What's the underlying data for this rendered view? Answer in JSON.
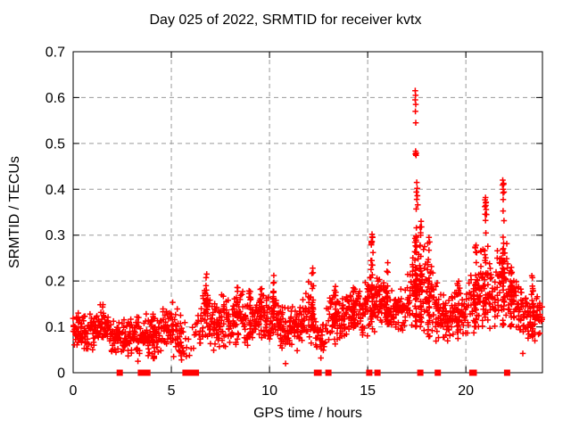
{
  "chart_data": {
    "type": "scatter",
    "title": "Day 025 of 2022, SRMTID for receiver kvtx",
    "xlabel": "GPS time / hours",
    "ylabel": "SRMTID / TECUs",
    "xlim": [
      0,
      23.9
    ],
    "ylim": [
      0,
      0.7
    ],
    "xticks": {
      "values": [
        0,
        5,
        10,
        15,
        20
      ],
      "labels": [
        "0",
        "5",
        "10",
        "15",
        "20"
      ]
    },
    "yticks": {
      "values": [
        0,
        0.1,
        0.2,
        0.3,
        0.4,
        0.5,
        0.6,
        0.7
      ],
      "labels": [
        "0",
        "0.1",
        "0.2",
        "0.3",
        "0.4",
        "0.5",
        "0.6",
        "0.7"
      ]
    },
    "grid": true,
    "legend": "none",
    "colors": {
      "marker": "#ff0000",
      "grid": "#9a9a9a",
      "frame": "#000000",
      "text": "#000000"
    },
    "marker": {
      "shape": "plus",
      "size": 7
    },
    "zero_marker": {
      "shape": "filled-square",
      "size": 7
    },
    "envelope": [
      [
        0.0,
        0.05,
        0.14,
        1
      ],
      [
        0.5,
        0.05,
        0.13,
        1
      ],
      [
        1.0,
        0.04,
        0.13,
        1
      ],
      [
        1.4,
        0.05,
        0.17,
        1
      ],
      [
        2.0,
        0.04,
        0.12,
        1
      ],
      [
        2.5,
        0.03,
        0.12,
        0.9
      ],
      [
        3.0,
        0.03,
        0.12,
        1
      ],
      [
        3.5,
        0.04,
        0.13,
        1
      ],
      [
        4.0,
        0.03,
        0.14,
        1
      ],
      [
        4.6,
        0.04,
        0.15,
        0.9
      ],
      [
        5.2,
        0.03,
        0.16,
        0.9
      ],
      [
        5.6,
        0.02,
        0.12,
        0.5
      ],
      [
        5.9,
        0.03,
        0.1,
        0.15
      ],
      [
        6.2,
        0.04,
        0.12,
        0.3
      ],
      [
        6.5,
        0.05,
        0.18,
        1
      ],
      [
        6.8,
        0.05,
        0.21,
        1
      ],
      [
        7.2,
        0.04,
        0.16,
        1
      ],
      [
        7.6,
        0.05,
        0.19,
        1
      ],
      [
        8.0,
        0.04,
        0.17,
        1
      ],
      [
        8.4,
        0.05,
        0.2,
        1
      ],
      [
        9.0,
        0.05,
        0.18,
        1
      ],
      [
        9.6,
        0.06,
        0.2,
        1
      ],
      [
        10.0,
        0.05,
        0.17,
        1
      ],
      [
        10.3,
        0.06,
        0.21,
        1
      ],
      [
        10.7,
        0.04,
        0.15,
        1
      ],
      [
        11.2,
        0.04,
        0.15,
        1
      ],
      [
        11.7,
        0.05,
        0.17,
        1
      ],
      [
        12.1,
        0.05,
        0.22,
        1
      ],
      [
        12.4,
        0.03,
        0.12,
        0.4
      ],
      [
        12.8,
        0.04,
        0.13,
        0.7
      ],
      [
        13.2,
        0.05,
        0.2,
        1
      ],
      [
        13.7,
        0.06,
        0.17,
        1
      ],
      [
        14.2,
        0.07,
        0.2,
        1
      ],
      [
        14.7,
        0.07,
        0.19,
        1
      ],
      [
        15.1,
        0.07,
        0.24,
        1
      ],
      [
        15.5,
        0.09,
        0.22,
        1.2
      ],
      [
        15.9,
        0.09,
        0.21,
        1.2
      ],
      [
        16.3,
        0.08,
        0.18,
        1
      ],
      [
        16.7,
        0.07,
        0.19,
        1
      ],
      [
        17.1,
        0.08,
        0.24,
        1
      ],
      [
        17.5,
        0.09,
        0.32,
        1.2
      ],
      [
        17.8,
        0.08,
        0.3,
        1
      ],
      [
        18.2,
        0.07,
        0.26,
        1
      ],
      [
        18.6,
        0.06,
        0.2,
        0.8
      ],
      [
        19.0,
        0.06,
        0.17,
        1
      ],
      [
        19.5,
        0.07,
        0.2,
        1
      ],
      [
        20.0,
        0.06,
        0.18,
        0.8
      ],
      [
        20.5,
        0.08,
        0.26,
        1
      ],
      [
        21.0,
        0.1,
        0.3,
        1
      ],
      [
        21.4,
        0.08,
        0.24,
        1
      ],
      [
        21.9,
        0.1,
        0.34,
        1
      ],
      [
        22.3,
        0.09,
        0.24,
        1.2
      ],
      [
        22.7,
        0.06,
        0.2,
        1
      ],
      [
        23.1,
        0.06,
        0.18,
        1
      ],
      [
        23.5,
        0.06,
        0.2,
        1
      ],
      [
        23.9,
        0.07,
        0.15,
        0.8
      ]
    ],
    "columns": [
      [
        4.1,
        0.03,
        0.14,
        10
      ],
      [
        5.5,
        0.03,
        0.15,
        10
      ],
      [
        6.8,
        0.13,
        0.215,
        12
      ],
      [
        8.35,
        0.12,
        0.195,
        15
      ],
      [
        9.0,
        0.1,
        0.18,
        12
      ],
      [
        9.55,
        0.12,
        0.2,
        12
      ],
      [
        10.2,
        0.12,
        0.215,
        14
      ],
      [
        12.2,
        0.1,
        0.23,
        20
      ],
      [
        13.35,
        0.1,
        0.2,
        15
      ],
      [
        14.3,
        0.1,
        0.2,
        12
      ],
      [
        15.2,
        0.12,
        0.3,
        25
      ],
      [
        16.0,
        0.1,
        0.23,
        15
      ],
      [
        17.45,
        0.1,
        0.33,
        40
      ],
      [
        17.7,
        0.1,
        0.32,
        25
      ],
      [
        18.1,
        0.08,
        0.29,
        18
      ],
      [
        19.6,
        0.08,
        0.2,
        12
      ],
      [
        20.5,
        0.1,
        0.28,
        15
      ],
      [
        21.0,
        0.12,
        0.38,
        22
      ],
      [
        21.9,
        0.1,
        0.42,
        30
      ],
      [
        22.3,
        0.1,
        0.25,
        20
      ],
      [
        23.4,
        0.07,
        0.22,
        15
      ]
    ],
    "outliers": [
      [
        17.42,
        0.615
      ],
      [
        17.44,
        0.605
      ],
      [
        17.42,
        0.595
      ],
      [
        17.45,
        0.585
      ],
      [
        17.43,
        0.57
      ],
      [
        17.45,
        0.545
      ],
      [
        17.44,
        0.483
      ],
      [
        17.47,
        0.479
      ],
      [
        17.43,
        0.477
      ],
      [
        17.46,
        0.474
      ],
      [
        17.5,
        0.415
      ],
      [
        17.52,
        0.402
      ],
      [
        17.48,
        0.394
      ],
      [
        17.53,
        0.386
      ],
      [
        17.5,
        0.378
      ],
      [
        17.55,
        0.366
      ],
      [
        17.47,
        0.357
      ],
      [
        17.72,
        0.33
      ],
      [
        17.74,
        0.318
      ],
      [
        17.7,
        0.305
      ],
      [
        15.22,
        0.302
      ],
      [
        15.25,
        0.295
      ],
      [
        15.2,
        0.285
      ],
      [
        15.27,
        0.262
      ],
      [
        21.88,
        0.42
      ],
      [
        21.92,
        0.413
      ],
      [
        21.9,
        0.4
      ],
      [
        21.94,
        0.394
      ],
      [
        21.0,
        0.382
      ],
      [
        21.03,
        0.372
      ],
      [
        20.97,
        0.362
      ],
      [
        21.05,
        0.345
      ],
      [
        21.0,
        0.332
      ],
      [
        20.52,
        0.278
      ],
      [
        20.55,
        0.262
      ],
      [
        18.12,
        0.295
      ],
      [
        18.15,
        0.285
      ],
      [
        12.2,
        0.228
      ],
      [
        12.22,
        0.218
      ],
      [
        6.8,
        0.215
      ],
      [
        10.22,
        0.212
      ],
      [
        16.02,
        0.24
      ],
      [
        3.3,
        0.025
      ],
      [
        10.82,
        0.02
      ],
      [
        12.62,
        0.032
      ],
      [
        5.52,
        0.028
      ],
      [
        22.9,
        0.042
      ]
    ],
    "zero_points": [
      2.37,
      3.45,
      3.7,
      3.78,
      5.72,
      5.98,
      6.25,
      12.42,
      12.5,
      13.0,
      15.08,
      15.5,
      17.68,
      18.57,
      20.33,
      20.4,
      22.1
    ]
  }
}
